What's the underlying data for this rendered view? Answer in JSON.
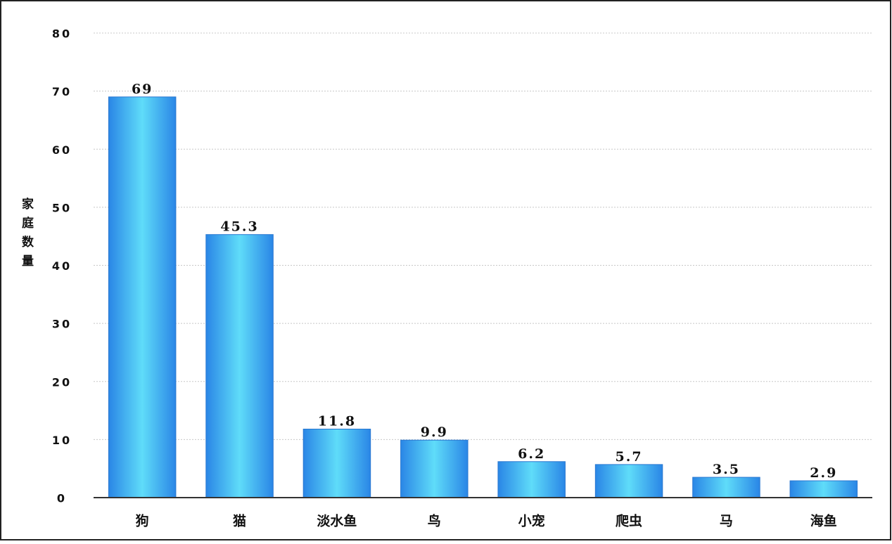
{
  "chart_data": {
    "type": "bar",
    "y_label": "家庭数量",
    "categories": [
      "狗",
      "猫",
      "淡水鱼",
      "鸟",
      "小宠",
      "爬虫",
      "马",
      "海鱼"
    ],
    "values": [
      69,
      45.3,
      11.8,
      9.9,
      6.2,
      5.7,
      3.5,
      2.9
    ],
    "color": "#3a9bec",
    "ylim": [
      0,
      80
    ],
    "yticks": [
      0,
      10,
      20,
      30,
      40,
      50,
      60,
      70,
      80
    ],
    "grid": true
  }
}
